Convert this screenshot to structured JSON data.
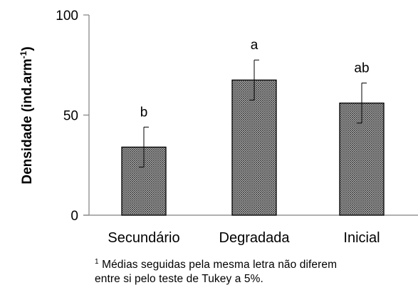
{
  "chart_data": {
    "type": "bar",
    "categories": [
      "Secundário",
      "Degradada",
      "Inicial"
    ],
    "values": [
      34,
      67.5,
      56
    ],
    "errors": [
      10,
      10,
      10
    ],
    "labels": [
      "b",
      "a",
      "ab"
    ],
    "ylabel": "Densidade (ind.arm",
    "ylabel_sup": "-1",
    "ylabel_end": ")",
    "ylim": [
      0,
      100
    ],
    "yticks": [
      0,
      50,
      100
    ],
    "grid": false,
    "bar_fill": "#9a9a9a",
    "bar_pattern": "crosshatch",
    "bar_stroke": "#000000"
  },
  "footnote": {
    "sup": "1",
    "line1": " Médias seguidas pela mesma letra não diferem",
    "line2": "entre si pelo teste de Tukey a 5%."
  }
}
